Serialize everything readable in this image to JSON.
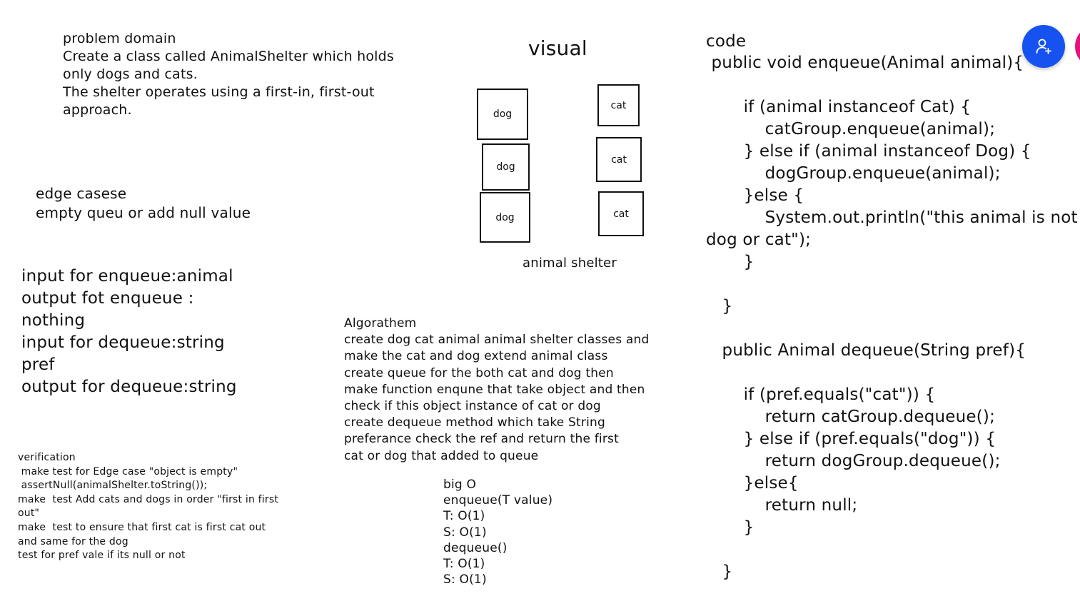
{
  "problem_domain": {
    "text": "problem domain\nCreate a class called AnimalShelter which holds\nonly dogs and cats.\nThe shelter operates using a first-in, first-out\napproach."
  },
  "edge_cases": {
    "text": "edge casese\nempty queu or add null value"
  },
  "io": {
    "text": "input for enqueue:animal\noutput fot enqueue :\nnothing\ninput for dequeue:string\npref\noutput for dequeue:string"
  },
  "verification": {
    "text": "verification\n make test for Edge case \"object is empty\"\n assertNull(animalShelter.toString());\nmake  test Add cats and dogs in order \"first in first\nout\"\nmake  test to ensure that first cat is first cat out\nand same for the dog\ntest for pref vale if its null or not"
  },
  "algorithm": {
    "text": "Algorathem\ncreate dog cat animal animal shelter classes and\nmake the cat and dog extend animal class\ncreate queue for the both cat and dog then\nmake function enqune that take object and then\ncheck if this object instance of cat or dog\ncreate dequeue method which take String\npreferance check the ref and return the first\ncat or dog that added to queue"
  },
  "big_o": {
    "text": "big O\nenqueue(T value)\nT: O(1)\nS: O(1)\ndequeue()\nT: O(1)\nS: O(1)"
  },
  "visual": {
    "title": "visual",
    "dogs": [
      "dog",
      "dog",
      "dog"
    ],
    "cats": [
      "cat",
      "cat",
      "cat"
    ],
    "caption": "animal shelter"
  },
  "code": {
    "title": "code",
    "text": " public void enqueue(Animal animal){\n\n       if (animal instanceof Cat) {\n           catGroup.enqueue(animal);\n       } else if (animal instanceof Dog) {\n           dogGroup.enqueue(animal);\n       }else {\n           System.out.println(\"this animal is not\ndog or cat\");\n       }\n\n   }\n\n   public Animal dequeue(String pref){\n\n       if (pref.equals(\"cat\")) {\n           return catGroup.dequeue();\n       } else if (pref.equals(\"dog\")) {\n           return dogGroup.dequeue();\n       }else{\n           return null;\n       }\n\n   }"
  },
  "toolbar": {
    "collaborator_icon": "add-user-icon",
    "accent": "#1652f0",
    "secondary_accent": "#e0147a"
  }
}
